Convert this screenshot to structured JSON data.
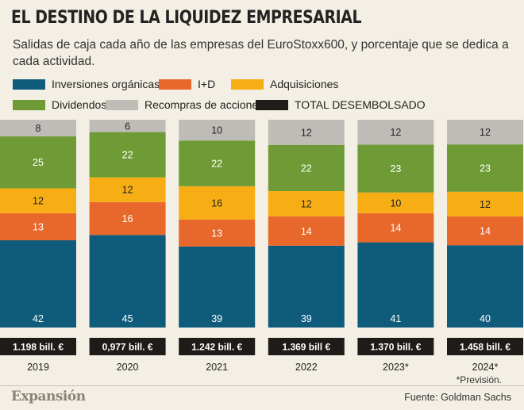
{
  "title": "EL DESTINO DE LA LIQUIDEZ EMPRESARIAL",
  "subtitle": "Salidas de caja cada año de las empresas del EuroStoxx600, y porcentaje que se dedica a cada actividad.",
  "legend": [
    {
      "label": "Inversiones orgánicas",
      "color": "#0e5b7c"
    },
    {
      "label": "I+D",
      "color": "#e8682b"
    },
    {
      "label": "Adquisiciones",
      "color": "#f7ae15"
    },
    {
      "label": "Dividendos",
      "color": "#6e9b35"
    },
    {
      "label": "Recompras de acciones",
      "color": "#bfbcb8"
    },
    {
      "label": "TOTAL DESEMBOLSADO",
      "color": "#1f1b18"
    }
  ],
  "footnote": "*Previsión.",
  "footer": {
    "logo": "Expansión",
    "source": "Fuente: Goldman Sachs"
  },
  "chart_data": {
    "type": "bar",
    "stacked": true,
    "percent_scale": true,
    "categories": [
      "2019",
      "2020",
      "2021",
      "2022",
      "2023*",
      "2024*"
    ],
    "series": [
      {
        "name": "Inversiones orgánicas",
        "values": [
          42,
          45,
          39,
          39,
          41,
          40
        ]
      },
      {
        "name": "I+D",
        "values": [
          13,
          16,
          13,
          14,
          14,
          14
        ]
      },
      {
        "name": "Adquisiciones",
        "values": [
          12,
          12,
          16,
          12,
          10,
          12
        ]
      },
      {
        "name": "Dividendos",
        "values": [
          25,
          22,
          22,
          22,
          23,
          23
        ]
      },
      {
        "name": "Recompras de acciones",
        "values": [
          8,
          6,
          10,
          12,
          12,
          12
        ]
      }
    ],
    "totals": [
      "1.198 bill. €",
      "0,977 bill. €",
      "1.242 bill. €",
      "1.369 bill €",
      "1.370 bill. €",
      "1.458 bill. €"
    ]
  }
}
